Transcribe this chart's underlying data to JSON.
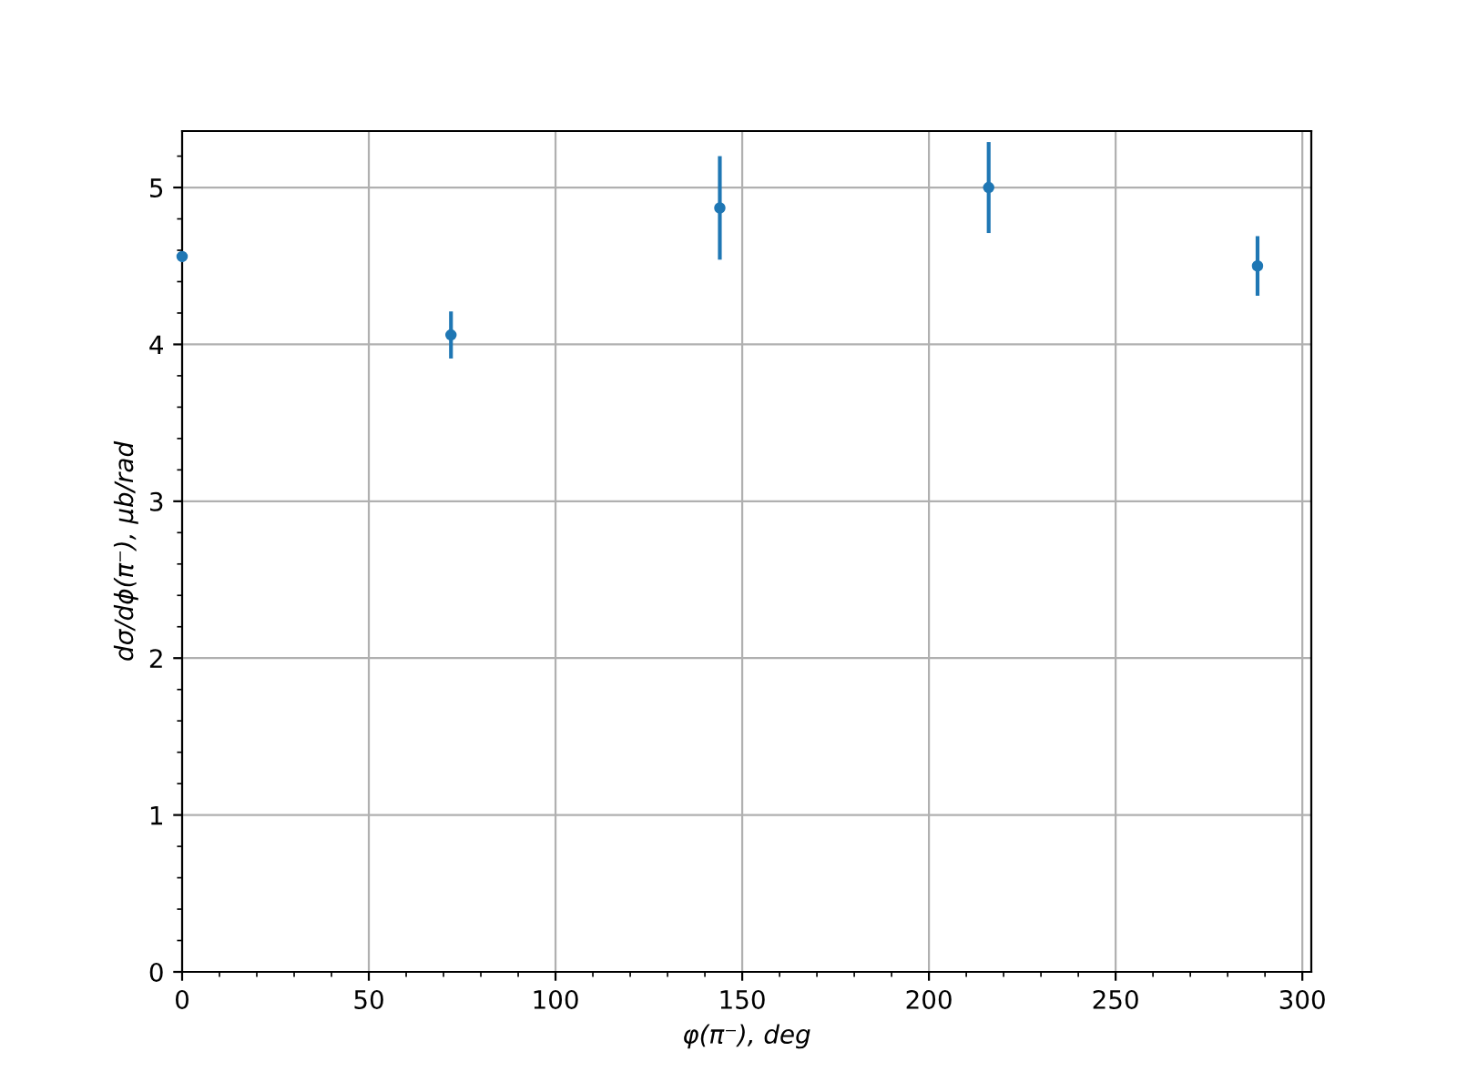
{
  "chart_data": {
    "type": "scatter",
    "xlabel": "φ(π⁻), deg",
    "ylabel": "dσ/dϕ(π⁻), μb/rad",
    "x": [
      0,
      72,
      144,
      216,
      288
    ],
    "series": [
      {
        "color": "#1f77b4",
        "values": [
          4.56,
          4.06,
          4.87,
          5.0,
          4.5
        ],
        "errors": [
          null,
          0.15,
          0.33,
          0.29,
          0.19
        ]
      }
    ],
    "xlim": [
      0,
      302.4
    ],
    "ylim": [
      0,
      5.36
    ],
    "xticks": [
      0,
      50,
      100,
      150,
      200,
      250,
      300
    ],
    "yticks": [
      0,
      1,
      2,
      3,
      4,
      5
    ],
    "grid": true,
    "marker": "circle"
  }
}
